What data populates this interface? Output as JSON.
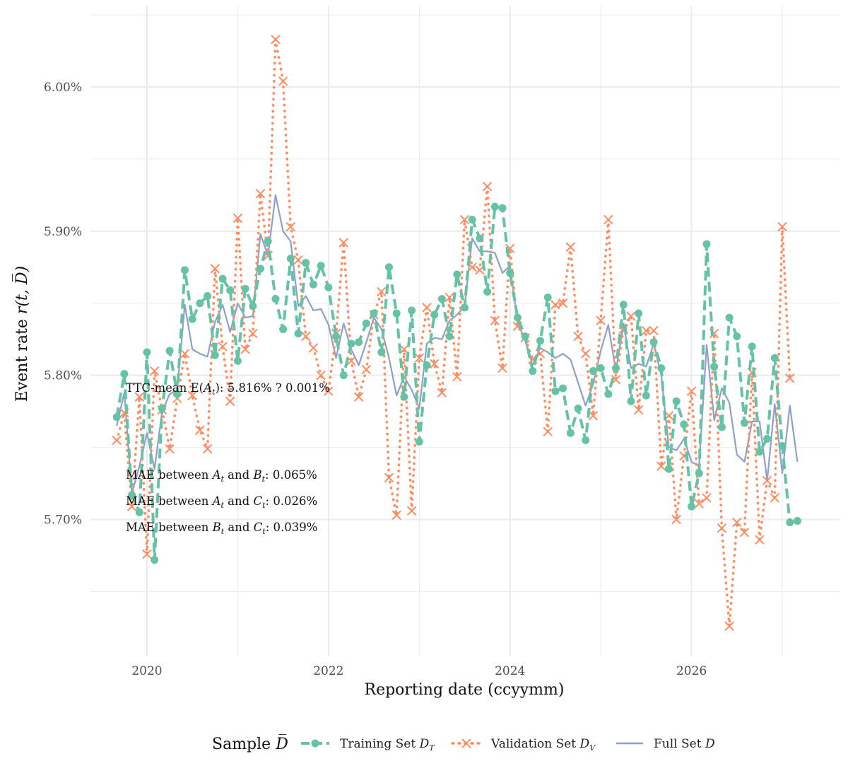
{
  "chart_data": {
    "type": "line",
    "xlabel": "Reporting date (ccyymm)",
    "ylabel_prefix": "Event rate ",
    "ylabel_math": "r(t, D̅)",
    "x_ticks": [
      "2020",
      "2022",
      "2024",
      "2026"
    ],
    "y_ticks": [
      "5.70%",
      "5.80%",
      "5.90%",
      "6.00%"
    ],
    "y_range": [
      5.645,
      6.05
    ],
    "x_range": [
      "2019-07",
      "2027-06"
    ],
    "grid": "on",
    "legend_position": "bottom",
    "legend_title_prefix": "Sample ",
    "legend_title_math": "D̅",
    "annotations": {
      "ttc_mean": {
        "prefix": "TTC-mean E(",
        "var": "A",
        "sub": "t",
        "suffix": "): 5.816% ? 0.001%"
      },
      "mae_ab": {
        "prefix": "MAE between ",
        "v1": "A",
        "s1": "t",
        "mid": " and ",
        "v2": "B",
        "s2": "t",
        "suffix": ": 0.065%"
      },
      "mae_ac": {
        "prefix": "MAE between ",
        "v1": "A",
        "s1": "t",
        "mid": " and ",
        "v2": "C",
        "s2": "t",
        "suffix": ": 0.026%"
      },
      "mae_bc": {
        "prefix": "MAE between ",
        "v1": "B",
        "s1": "t",
        "mid": " and ",
        "v2": "C",
        "s2": "t",
        "suffix": ": 0.039%"
      }
    },
    "colors": {
      "training": "#66c2a5",
      "validation": "#fc8d62",
      "full": "#8da0cb",
      "grid": "#ebebeb"
    },
    "series": [
      {
        "name_prefix": "Training Set ",
        "name_var": "D",
        "name_sub": "T",
        "style": "dashed",
        "marker": "circle",
        "start": "2019-09",
        "values": [
          5.771,
          5.801,
          5.717,
          5.705,
          5.816,
          5.672,
          5.777,
          5.817,
          5.787,
          5.873,
          5.839,
          5.85,
          5.855,
          5.814,
          5.867,
          5.859,
          5.81,
          5.86,
          5.848,
          5.874,
          5.893,
          5.853,
          5.832,
          5.881,
          5.829,
          5.878,
          5.863,
          5.876,
          5.861,
          5.827,
          5.8,
          5.822,
          5.823,
          5.836,
          5.843,
          5.816,
          5.875,
          5.843,
          5.785,
          5.845,
          5.754,
          5.807,
          5.842,
          5.853,
          5.827,
          5.87,
          5.847,
          5.908,
          5.895,
          5.858,
          5.917,
          5.916,
          5.871,
          5.84,
          5.827,
          5.803,
          5.824,
          5.854,
          5.789,
          5.791,
          5.76,
          5.777,
          5.755,
          5.803,
          5.805,
          5.787,
          5.805,
          5.849,
          5.782,
          5.843,
          5.786,
          5.823,
          5.805,
          5.735,
          5.782,
          5.766,
          5.709,
          5.732,
          5.891,
          5.806,
          5.764,
          5.84,
          5.827,
          5.767,
          5.82,
          5.747,
          5.756,
          5.812,
          5.751,
          5.698,
          5.699
        ]
      },
      {
        "name_prefix": "Validation Set ",
        "name_var": "D",
        "name_sub": "V",
        "style": "dotted",
        "marker": "x",
        "start": "2019-09",
        "values": [
          5.755,
          5.774,
          5.709,
          5.785,
          5.676,
          5.803,
          5.776,
          5.749,
          5.784,
          5.815,
          5.786,
          5.762,
          5.749,
          5.874,
          5.82,
          5.782,
          5.909,
          5.818,
          5.829,
          5.926,
          5.883,
          6.033,
          6.004,
          5.903,
          5.88,
          5.827,
          5.819,
          5.8,
          5.789,
          5.829,
          5.892,
          5.81,
          5.785,
          5.804,
          5.842,
          5.858,
          5.729,
          5.703,
          5.818,
          5.706,
          5.812,
          5.847,
          5.808,
          5.788,
          5.854,
          5.799,
          5.908,
          5.875,
          5.873,
          5.931,
          5.838,
          5.805,
          5.888,
          5.834,
          5.826,
          5.811,
          5.815,
          5.761,
          5.849,
          5.85,
          5.889,
          5.827,
          5.815,
          5.772,
          5.838,
          5.908,
          5.797,
          5.832,
          5.841,
          5.776,
          5.831,
          5.831,
          5.737,
          5.772,
          5.7,
          5.744,
          5.789,
          5.711,
          5.715,
          5.829,
          5.694,
          5.626,
          5.698,
          5.691,
          5.802,
          5.686,
          5.727,
          5.715,
          5.903,
          5.798
        ]
      },
      {
        "name_prefix": "Full Set ",
        "name_var": "D",
        "name_sub": "",
        "style": "solid",
        "marker": "none",
        "start": "2019-09",
        "values": [
          5.765,
          5.788,
          5.718,
          5.737,
          5.76,
          5.735,
          5.775,
          5.787,
          5.79,
          5.849,
          5.818,
          5.815,
          5.813,
          5.837,
          5.849,
          5.83,
          5.85,
          5.84,
          5.841,
          5.898,
          5.883,
          5.925,
          5.9,
          5.893,
          5.848,
          5.855,
          5.845,
          5.846,
          5.835,
          5.812,
          5.836,
          5.818,
          5.807,
          5.823,
          5.84,
          5.832,
          5.812,
          5.786,
          5.799,
          5.79,
          5.777,
          5.822,
          5.826,
          5.825,
          5.838,
          5.842,
          5.848,
          5.895,
          5.886,
          5.886,
          5.885,
          5.871,
          5.876,
          5.837,
          5.824,
          5.807,
          5.819,
          5.816,
          5.812,
          5.815,
          5.811,
          5.795,
          5.779,
          5.794,
          5.817,
          5.835,
          5.803,
          5.836,
          5.805,
          5.808,
          5.806,
          5.822,
          5.8,
          5.75,
          5.748,
          5.756,
          5.74,
          5.737,
          5.821,
          5.769,
          5.791,
          5.781,
          5.745,
          5.74,
          5.768,
          5.768,
          5.727,
          5.78,
          5.732,
          5.779,
          5.74
        ]
      }
    ]
  }
}
